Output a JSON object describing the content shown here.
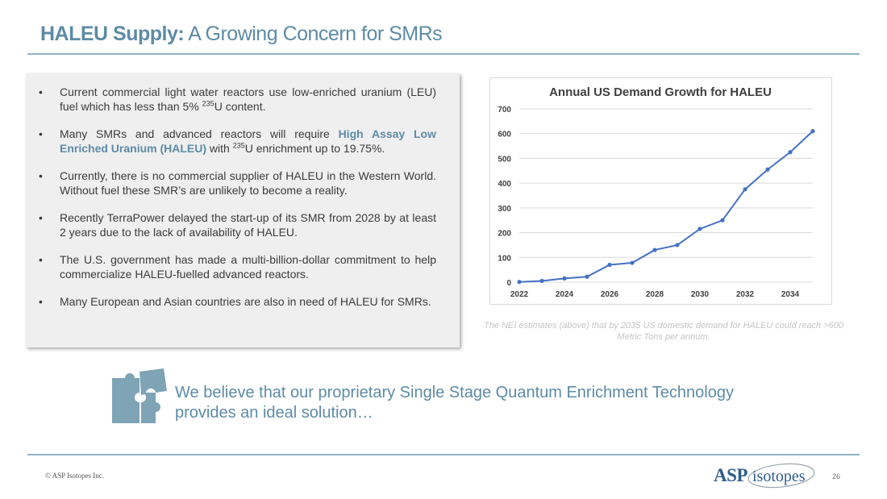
{
  "slide": {
    "title_bold": "HALEU Supply:",
    "title_rest": " A Growing Concern for SMRs",
    "page_number": "26",
    "copyright": "© ASP Isotopes Inc.",
    "logo": {
      "asp": "ASP",
      "isotopes": "isotopes"
    },
    "colors": {
      "accent": "#5d8ba6",
      "rule": "#8fb3c4",
      "line": "#4472c4",
      "puzzle": "#7ea4b5"
    }
  },
  "bullets": [
    {
      "parts": [
        {
          "t": "Current commercial light water reactors use low-enriched uranium (LEU) fuel which has less than 5% "
        },
        {
          "t": "235",
          "sup": true
        },
        {
          "t": "U content."
        }
      ]
    },
    {
      "parts": [
        {
          "t": "Many SMRs and advanced reactors will require "
        },
        {
          "t": "High Assay Low Enriched Uranium (HALEU)",
          "hl": true
        },
        {
          "t": " with "
        },
        {
          "t": "235",
          "sup": true
        },
        {
          "t": "U enrichment up to 19.75%."
        }
      ]
    },
    {
      "parts": [
        {
          "t": "Currently, there is no commercial supplier of HALEU in the Western World. Without fuel these SMR’s are unlikely to become a reality."
        }
      ]
    },
    {
      "parts": [
        {
          "t": "Recently TerraPower delayed the start-up of its SMR from 2028 by at least 2 years due to the lack of availability of HALEU."
        }
      ]
    },
    {
      "parts": [
        {
          "t": "The U.S. government has made a multi-billion-dollar commitment to help commercialize HALEU-fuelled advanced reactors."
        }
      ]
    },
    {
      "parts": [
        {
          "t": "Many European and Asian countries are also in need of HALEU for SMRs."
        }
      ]
    }
  ],
  "caption": "The NEI estimates (above) that by 2035 US domestic demand for HALEU could reach >600 Metric Tons per annum.",
  "believe": "We believe that our proprietary Single Stage Quantum Enrichment Technology provides an ideal solution…",
  "chart_data": {
    "type": "line",
    "title": "Annual US Demand Growth for HALEU",
    "xlabel": "",
    "ylabel": "",
    "x": [
      2022,
      2023,
      2024,
      2025,
      2026,
      2027,
      2028,
      2029,
      2030,
      2031,
      2032,
      2033,
      2034,
      2035
    ],
    "values": [
      1,
      5,
      15,
      22,
      70,
      78,
      130,
      150,
      215,
      250,
      375,
      455,
      525,
      610
    ],
    "x_ticks": [
      "2022",
      "2024",
      "2026",
      "2028",
      "2030",
      "2032",
      "2034"
    ],
    "y_ticks": [
      "0",
      "100",
      "200",
      "300",
      "400",
      "500",
      "600",
      "700"
    ],
    "ylim": [
      0,
      700
    ],
    "grid": true,
    "legend": "none"
  }
}
